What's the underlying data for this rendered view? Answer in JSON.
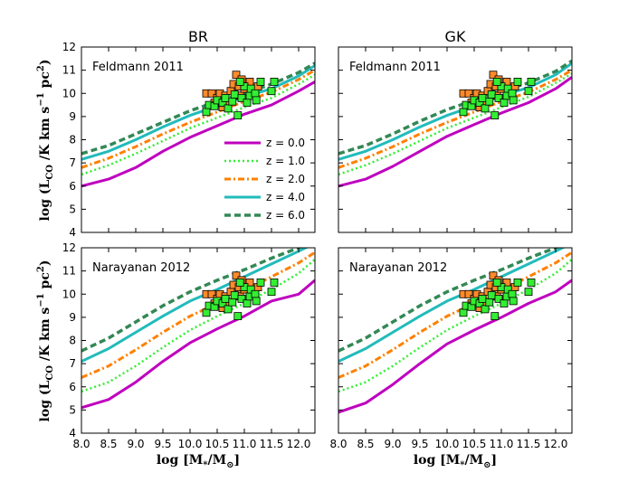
{
  "chart_data": {
    "type": "line",
    "column_titles": [
      "BR",
      "GK"
    ],
    "row_annotations": [
      "Feldmann 2011",
      "Narayanan 2012"
    ],
    "xlabel": "log [M*/M⊙]",
    "ylabel": "log (LCO /K km s−1 pc2)",
    "xlim": [
      8.0,
      12.3
    ],
    "ylim": [
      4,
      12
    ],
    "xticks": [
      8.0,
      8.5,
      9.0,
      9.5,
      10.0,
      10.5,
      11.0,
      11.5,
      12.0
    ],
    "xtick_labels": [
      "8.0",
      "8.5",
      "9.0",
      "9.5",
      "10.0",
      "10.5",
      "11.0",
      "11.5",
      "12.0"
    ],
    "yticks": [
      4,
      5,
      6,
      7,
      8,
      9,
      10,
      11,
      12
    ],
    "ytick_labels": [
      "4",
      "5",
      "6",
      "7",
      "8",
      "9",
      "10",
      "11",
      "12"
    ],
    "legend": [
      {
        "label": "z = 0.0",
        "color": "#bf00bf",
        "style": "solid"
      },
      {
        "label": "z = 1.0",
        "color": "#33ee33",
        "style": "dotted"
      },
      {
        "label": "z = 2.0",
        "color": "#ff8000",
        "style": "dashdot"
      },
      {
        "label": "z = 4.0",
        "color": "#22bbbb",
        "style": "solid"
      },
      {
        "label": "z = 6.0",
        "color": "#338855",
        "style": "dashed"
      }
    ],
    "mass_grid": [
      8.0,
      8.5,
      9.0,
      9.5,
      10.0,
      10.5,
      11.0,
      11.5,
      12.0,
      12.3
    ],
    "panels": [
      {
        "row": 0,
        "col": 0,
        "series": [
          {
            "name": "z = 0.0",
            "values": [
              6.0,
              6.3,
              6.8,
              7.5,
              8.1,
              8.6,
              9.1,
              9.5,
              10.1,
              10.5
            ]
          },
          {
            "name": "z = 1.0",
            "values": [
              6.5,
              6.9,
              7.4,
              7.95,
              8.5,
              8.95,
              9.4,
              9.8,
              10.4,
              10.8
            ]
          },
          {
            "name": "z = 2.0",
            "values": [
              6.8,
              7.2,
              7.7,
              8.25,
              8.75,
              9.2,
              9.65,
              10.05,
              10.6,
              11.0
            ]
          },
          {
            "name": "z = 4.0",
            "values": [
              7.15,
              7.5,
              8.0,
              8.55,
              9.05,
              9.45,
              9.85,
              10.2,
              10.75,
              11.2
            ]
          },
          {
            "name": "z = 6.0",
            "values": [
              7.4,
              7.75,
              8.25,
              8.75,
              9.25,
              9.65,
              10.0,
              10.4,
              10.9,
              11.3
            ]
          }
        ]
      },
      {
        "row": 0,
        "col": 1,
        "series": [
          {
            "name": "z = 0.0",
            "values": [
              6.0,
              6.3,
              6.85,
              7.5,
              8.15,
              8.65,
              9.15,
              9.6,
              10.2,
              10.7
            ]
          },
          {
            "name": "z = 1.0",
            "values": [
              6.5,
              6.9,
              7.4,
              7.95,
              8.5,
              8.95,
              9.4,
              9.85,
              10.45,
              10.85
            ]
          },
          {
            "name": "z = 2.0",
            "values": [
              6.8,
              7.2,
              7.7,
              8.25,
              8.75,
              9.2,
              9.65,
              10.05,
              10.6,
              11.0
            ]
          },
          {
            "name": "z = 4.0",
            "values": [
              7.15,
              7.5,
              8.0,
              8.55,
              9.05,
              9.45,
              9.9,
              10.25,
              10.8,
              11.3
            ]
          },
          {
            "name": "z = 6.0",
            "values": [
              7.4,
              7.75,
              8.25,
              8.8,
              9.3,
              9.7,
              10.1,
              10.45,
              10.95,
              11.4
            ]
          }
        ]
      },
      {
        "row": 1,
        "col": 0,
        "series": [
          {
            "name": "z = 0.0",
            "values": [
              5.1,
              5.45,
              6.2,
              7.1,
              7.9,
              8.5,
              9.05,
              9.7,
              10.0,
              10.6
            ]
          },
          {
            "name": "z = 1.0",
            "values": [
              5.8,
              6.2,
              6.9,
              7.7,
              8.45,
              9.05,
              9.6,
              10.2,
              10.9,
              11.5
            ]
          },
          {
            "name": "z = 2.0",
            "values": [
              6.4,
              6.9,
              7.6,
              8.35,
              9.05,
              9.6,
              10.15,
              10.75,
              11.35,
              11.8
            ]
          },
          {
            "name": "z = 4.0",
            "values": [
              7.1,
              7.65,
              8.35,
              9.05,
              9.7,
              10.2,
              10.75,
              11.3,
              11.85,
              12.2
            ]
          },
          {
            "name": "z = 6.0",
            "values": [
              7.55,
              8.1,
              8.8,
              9.5,
              10.1,
              10.6,
              11.05,
              11.55,
              12.0,
              12.3
            ]
          }
        ]
      },
      {
        "row": 1,
        "col": 1,
        "series": [
          {
            "name": "z = 0.0",
            "values": [
              4.9,
              5.3,
              6.1,
              7.0,
              7.85,
              8.45,
              9.0,
              9.6,
              10.1,
              10.6
            ]
          },
          {
            "name": "z = 1.0",
            "values": [
              5.8,
              6.2,
              6.9,
              7.7,
              8.45,
              9.05,
              9.6,
              10.2,
              10.9,
              11.5
            ]
          },
          {
            "name": "z = 2.0",
            "values": [
              6.4,
              6.9,
              7.6,
              8.35,
              9.05,
              9.6,
              10.15,
              10.75,
              11.35,
              11.8
            ]
          },
          {
            "name": "z = 4.0",
            "values": [
              7.1,
              7.65,
              8.35,
              9.05,
              9.7,
              10.2,
              10.75,
              11.3,
              11.85,
              12.2
            ]
          },
          {
            "name": "z = 6.0",
            "values": [
              7.55,
              8.1,
              8.8,
              9.5,
              10.1,
              10.6,
              11.05,
              11.55,
              12.0,
              12.3
            ]
          }
        ]
      }
    ],
    "observations": {
      "orange": {
        "color": "#ff8a2a",
        "points": [
          [
            10.3,
            10.0
          ],
          [
            10.4,
            10.0
          ],
          [
            10.5,
            9.8
          ],
          [
            10.55,
            10.0
          ],
          [
            10.65,
            9.9
          ],
          [
            10.7,
            9.6
          ],
          [
            10.75,
            10.1
          ],
          [
            10.8,
            10.4
          ],
          [
            10.85,
            10.8
          ],
          [
            10.9,
            10.3
          ],
          [
            10.92,
            9.9
          ],
          [
            10.95,
            10.6
          ],
          [
            11.0,
            10.2
          ],
          [
            11.05,
            9.75
          ],
          [
            11.1,
            10.5
          ],
          [
            11.15,
            10.0
          ],
          [
            11.25,
            10.3
          ],
          [
            10.6,
            9.4
          ],
          [
            10.45,
            9.6
          ],
          [
            11.2,
            9.9
          ]
        ]
      },
      "green": {
        "color": "#33ee33",
        "points": [
          [
            10.3,
            9.2
          ],
          [
            10.35,
            9.5
          ],
          [
            10.45,
            9.45
          ],
          [
            10.5,
            9.7
          ],
          [
            10.6,
            9.6
          ],
          [
            10.65,
            9.8
          ],
          [
            10.7,
            9.35
          ],
          [
            10.78,
            9.65
          ],
          [
            10.82,
            9.95
          ],
          [
            10.88,
            9.05
          ],
          [
            10.95,
            9.8
          ],
          [
            11.0,
            10.3
          ],
          [
            11.05,
            9.6
          ],
          [
            11.1,
            9.9
          ],
          [
            11.12,
            10.2
          ],
          [
            11.2,
            10.0
          ],
          [
            11.3,
            10.5
          ],
          [
            11.5,
            10.1
          ],
          [
            11.55,
            10.5
          ],
          [
            10.92,
            10.5
          ],
          [
            11.22,
            9.7
          ]
        ]
      }
    }
  }
}
